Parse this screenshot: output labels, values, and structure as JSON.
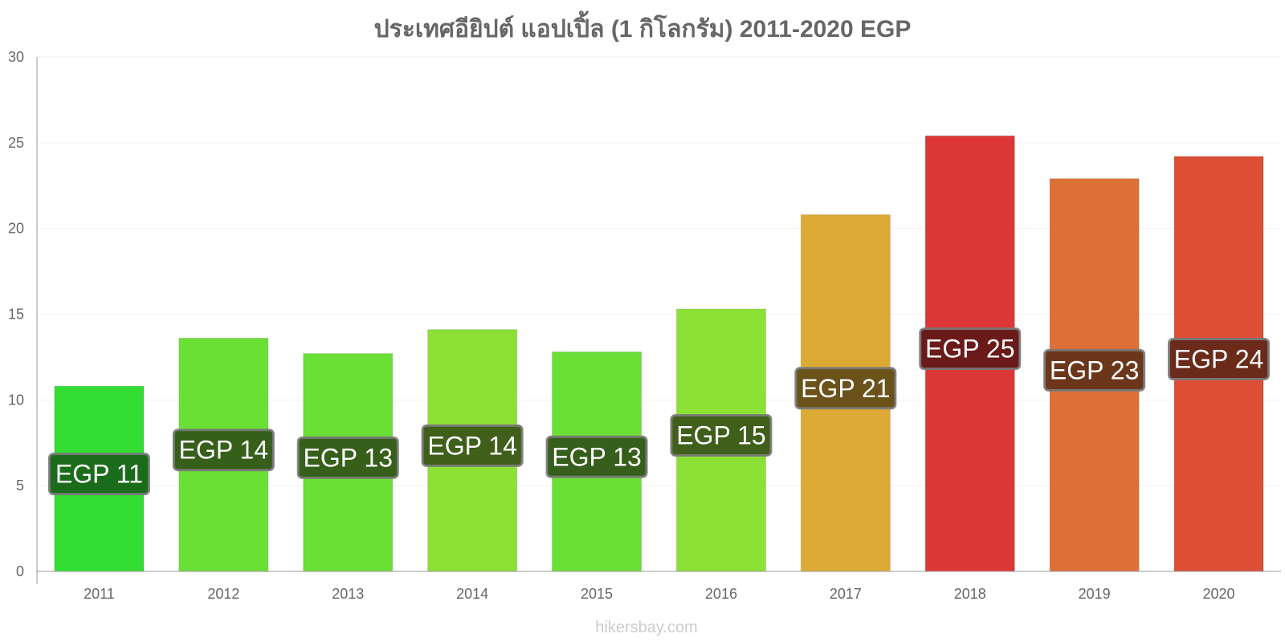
{
  "chart_data": {
    "type": "bar",
    "title": "ประเทศอียิปต์ แอปเปิ้ล (1 กิโลกรัม) 2011-2020 EGP",
    "categories": [
      "2011",
      "2012",
      "2013",
      "2014",
      "2015",
      "2016",
      "2017",
      "2018",
      "2019",
      "2020"
    ],
    "values": [
      10.8,
      13.6,
      12.7,
      14.1,
      12.8,
      15.3,
      20.8,
      25.4,
      22.9,
      24.2
    ],
    "data_labels": [
      "EGP 11",
      "EGP 14",
      "EGP 13",
      "EGP 14",
      "EGP 13",
      "EGP 15",
      "EGP 21",
      "EGP 25",
      "EGP 23",
      "EGP 24"
    ],
    "bar_colors": [
      "#33dd33",
      "#6ae035",
      "#6ae035",
      "#8ce036",
      "#6ae035",
      "#8ce036",
      "#ddaa36",
      "#dd3636",
      "#dd7036",
      "#dd4e36"
    ],
    "label_bg_colors": [
      "#1a6b1a",
      "#355f1a",
      "#355f1a",
      "#3f5f1a",
      "#355f1a",
      "#3f5f1a",
      "#6b521a",
      "#6b1a1a",
      "#6b361a",
      "#6b2a1a"
    ],
    "ylim": [
      0,
      30
    ],
    "yticks": [
      0,
      5,
      10,
      15,
      20,
      25,
      30
    ],
    "xlabel": "",
    "ylabel": "",
    "grid": true,
    "legend": "none"
  },
  "credit": "hikersbay.com"
}
